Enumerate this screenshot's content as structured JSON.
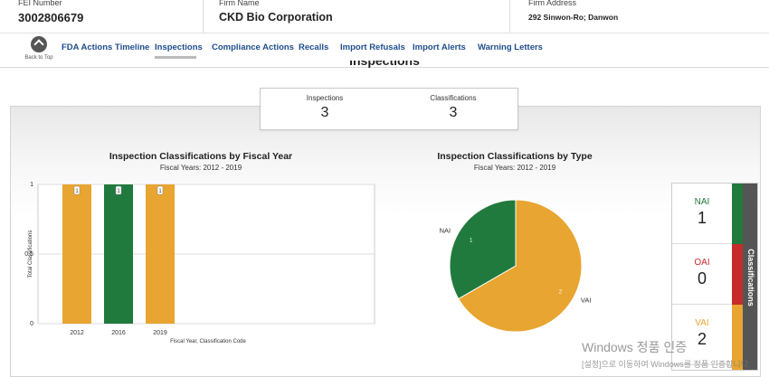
{
  "firm": {
    "fei_label": "FEI Number",
    "fei_value": "3002806679",
    "name_label": "Firm Name",
    "name_value": "CKD Bio Corporation",
    "address_label": "Firm Address",
    "address_value": "292 Sinwon-Ro; Danwon"
  },
  "nav": {
    "back_to_top": "Back to Top",
    "items": [
      {
        "label": "FDA Actions Timeline"
      },
      {
        "label": "Inspections"
      },
      {
        "label": "Compliance Actions"
      },
      {
        "label": "Recalls"
      },
      {
        "label": "Import Refusals"
      },
      {
        "label": "Import Alerts"
      },
      {
        "label": "Warning Letters"
      }
    ],
    "active": "Inspections"
  },
  "section": {
    "title": "Inspections"
  },
  "summary": {
    "inspections_label": "Inspections",
    "inspections_value": "3",
    "classifications_label": "Classifications",
    "classifications_value": "3"
  },
  "colors": {
    "NAI": "#217a3d",
    "OAI": "#c62b2b",
    "VAI": "#e8a531",
    "nav_link": "#1f4e8c"
  },
  "chart_data": [
    {
      "type": "bar",
      "title": "Inspection Classifications by Fiscal Year",
      "subtitle": "Fiscal Years: 2012 - 2019",
      "xlabel": "Fiscal Year, Classification Code",
      "ylabel": "Total Classifications",
      "ylim": [
        0,
        1
      ],
      "yticks": [
        "0",
        "0.5",
        "1"
      ],
      "categories": [
        "2012",
        "2016",
        "2019"
      ],
      "values": [
        1,
        1,
        1
      ],
      "data_labels": [
        "1",
        "1",
        "1"
      ],
      "classes": [
        "VAI",
        "NAI",
        "VAI"
      ],
      "grid": true
    },
    {
      "type": "pie",
      "title": "Inspection Classifications by Type",
      "subtitle": "Fiscal Years: 2012 - 2019",
      "slices": [
        {
          "label": "VAI",
          "value": 2,
          "data_label": "2"
        },
        {
          "label": "NAI",
          "value": 1,
          "data_label": "1"
        }
      ]
    }
  ],
  "classifications": {
    "tab_label": "Classifications",
    "items": [
      {
        "name": "NAI",
        "count": "1"
      },
      {
        "name": "OAI",
        "count": "0"
      },
      {
        "name": "VAI",
        "count": "2"
      }
    ]
  },
  "watermark": {
    "line1": "Windows 정품 인증",
    "line2": "[설정]으로 이동하여 Windows를 정품 인증합니다."
  }
}
